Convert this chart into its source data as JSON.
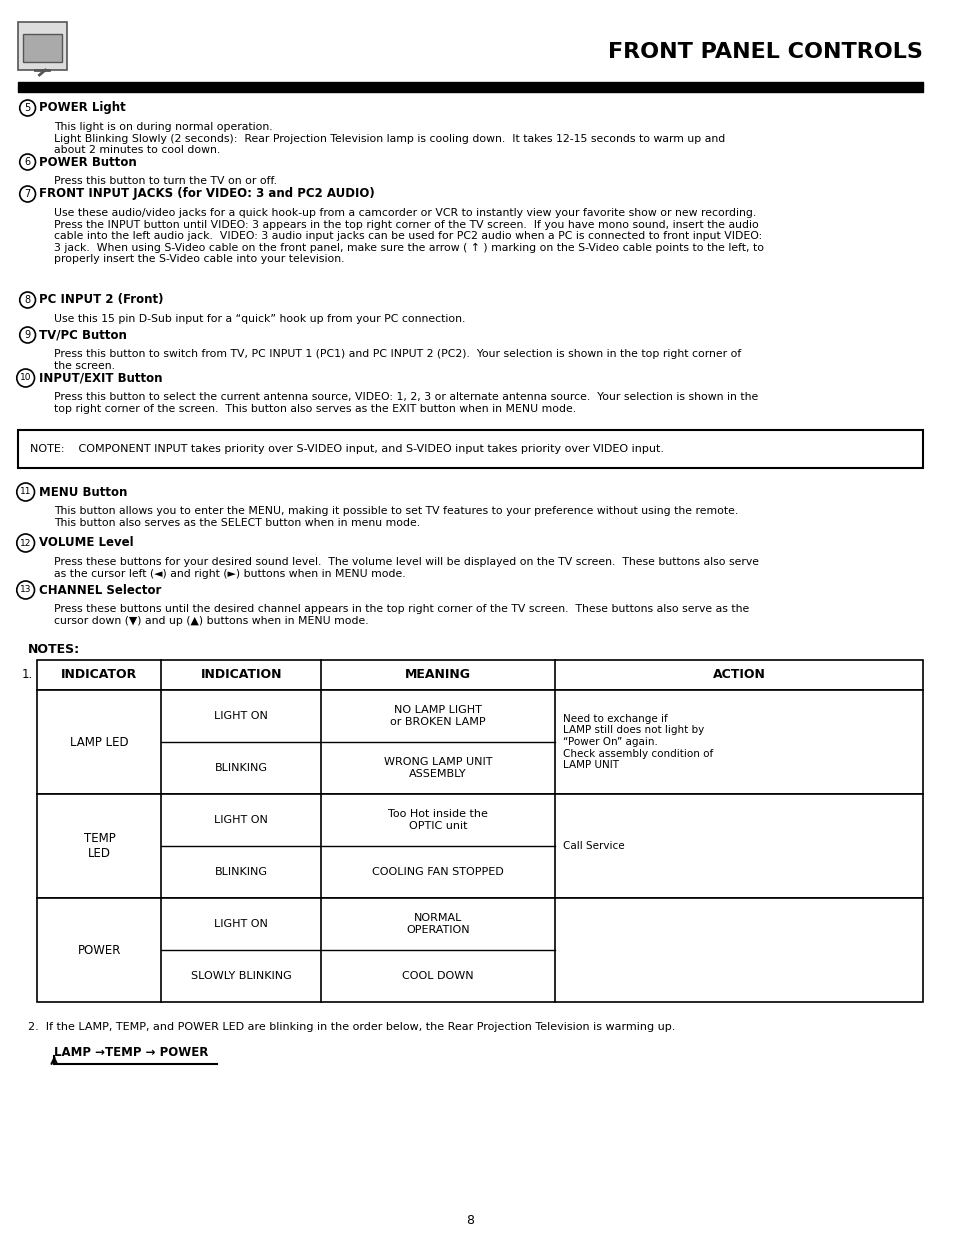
{
  "title": "FRONT PANEL CONTROLS",
  "page_number": "8",
  "sections": [
    {
      "number": "5",
      "heading": "POWER Light",
      "body": "This light is on during normal operation.\nLight Blinking Slowly (2 seconds):  Rear Projection Television lamp is cooling down.  It takes 12-15 seconds to warm up and\nabout 2 minutes to cool down."
    },
    {
      "number": "6",
      "heading": "POWER Button",
      "body": "Press this button to turn the TV on or off."
    },
    {
      "number": "7",
      "heading": "FRONT INPUT JACKS (for VIDEO: 3 and PC2 AUDIO)",
      "body": "Use these audio/video jacks for a quick hook-up from a camcorder or VCR to instantly view your favorite show or new recording.\nPress the INPUT button until VIDEO: 3 appears in the top right corner of the TV screen.  If you have mono sound, insert the audio\ncable into the left audio jack.  VIDEO: 3 audio input jacks can be used for PC2 audio when a PC is connected to front input VIDEO:\n3 jack.  When using S-Video cable on the front panel, make sure the arrow ( ↑ ) marking on the S-Video cable points to the left, to\nproperly insert the S-Video cable into your television."
    },
    {
      "number": "8",
      "heading": "PC INPUT 2 (Front)",
      "body": "Use this 15 pin D-Sub input for a “quick” hook up from your PC connection."
    },
    {
      "number": "9",
      "heading": "TV/PC Button",
      "body": "Press this button to switch from TV, PC INPUT 1 (PC1) and PC INPUT 2 (PC2).  Your selection is shown in the top right corner of\nthe screen."
    },
    {
      "number": "10",
      "heading": "INPUT/EXIT Button",
      "body": "Press this button to select the current antenna source, VIDEO: 1, 2, 3 or alternate antenna source.  Your selection is shown in the\ntop right corner of the screen.  This button also serves as the EXIT button when in MENU mode."
    }
  ],
  "note_box": "NOTE:    COMPONENT INPUT takes priority over S-VIDEO input, and S-VIDEO input takes priority over VIDEO input.",
  "sections2": [
    {
      "number": "11",
      "heading": "MENU Button",
      "body": "This button allows you to enter the MENU, making it possible to set TV features to your preference without using the remote.\nThis button also serves as the SELECT button when in menu mode."
    },
    {
      "number": "12",
      "heading": "VOLUME Level",
      "body": "Press these buttons for your desired sound level.  The volume level will be displayed on the TV screen.  These buttons also serve\nas the cursor left (◄) and right (►) buttons when in MENU mode."
    },
    {
      "number": "13",
      "heading": "CHANNEL Selector",
      "body": "Press these buttons until the desired channel appears in the top right corner of the TV screen.  These buttons also serve as the\ncursor down (▼) and up (▲) buttons when in MENU mode."
    }
  ],
  "notes_label": "NOTES:",
  "table_headers": [
    "INDICATOR",
    "INDICATION",
    "MEANING",
    "ACTION"
  ],
  "group_data": [
    {
      "indicator": "LAMP LED",
      "rows": [
        {
          "indication": "LIGHT ON",
          "meaning": "NO LAMP LIGHT\nor BROKEN LAMP",
          "action": "Need to exchange if\nLAMP still does not light by\n“Power On” again.\nCheck assembly condition of\nLAMP UNIT"
        },
        {
          "indication": "BLINKING",
          "meaning": "WRONG LAMP UNIT\nASSEMBLY",
          "action": ""
        }
      ]
    },
    {
      "indicator": "TEMP\nLED",
      "rows": [
        {
          "indication": "LIGHT ON",
          "meaning": "Too Hot inside the\nOPTIC unit",
          "action": ""
        },
        {
          "indication": "BLINKING",
          "meaning": "COOLING FAN STOPPED",
          "action": "Call Service"
        }
      ]
    },
    {
      "indicator": "POWER",
      "rows": [
        {
          "indication": "LIGHT ON",
          "meaning": "NORMAL\nOPERATION",
          "action": ""
        },
        {
          "indication": "SLOWLY BLINKING",
          "meaning": "COOL DOWN",
          "action": ""
        }
      ]
    }
  ],
  "note2": "2.  If the LAMP, TEMP, and POWER LED are blinking in the order below, the Rear Projection Television is warming up.",
  "lamp_arrow": "LAMP →TEMP → POWER"
}
